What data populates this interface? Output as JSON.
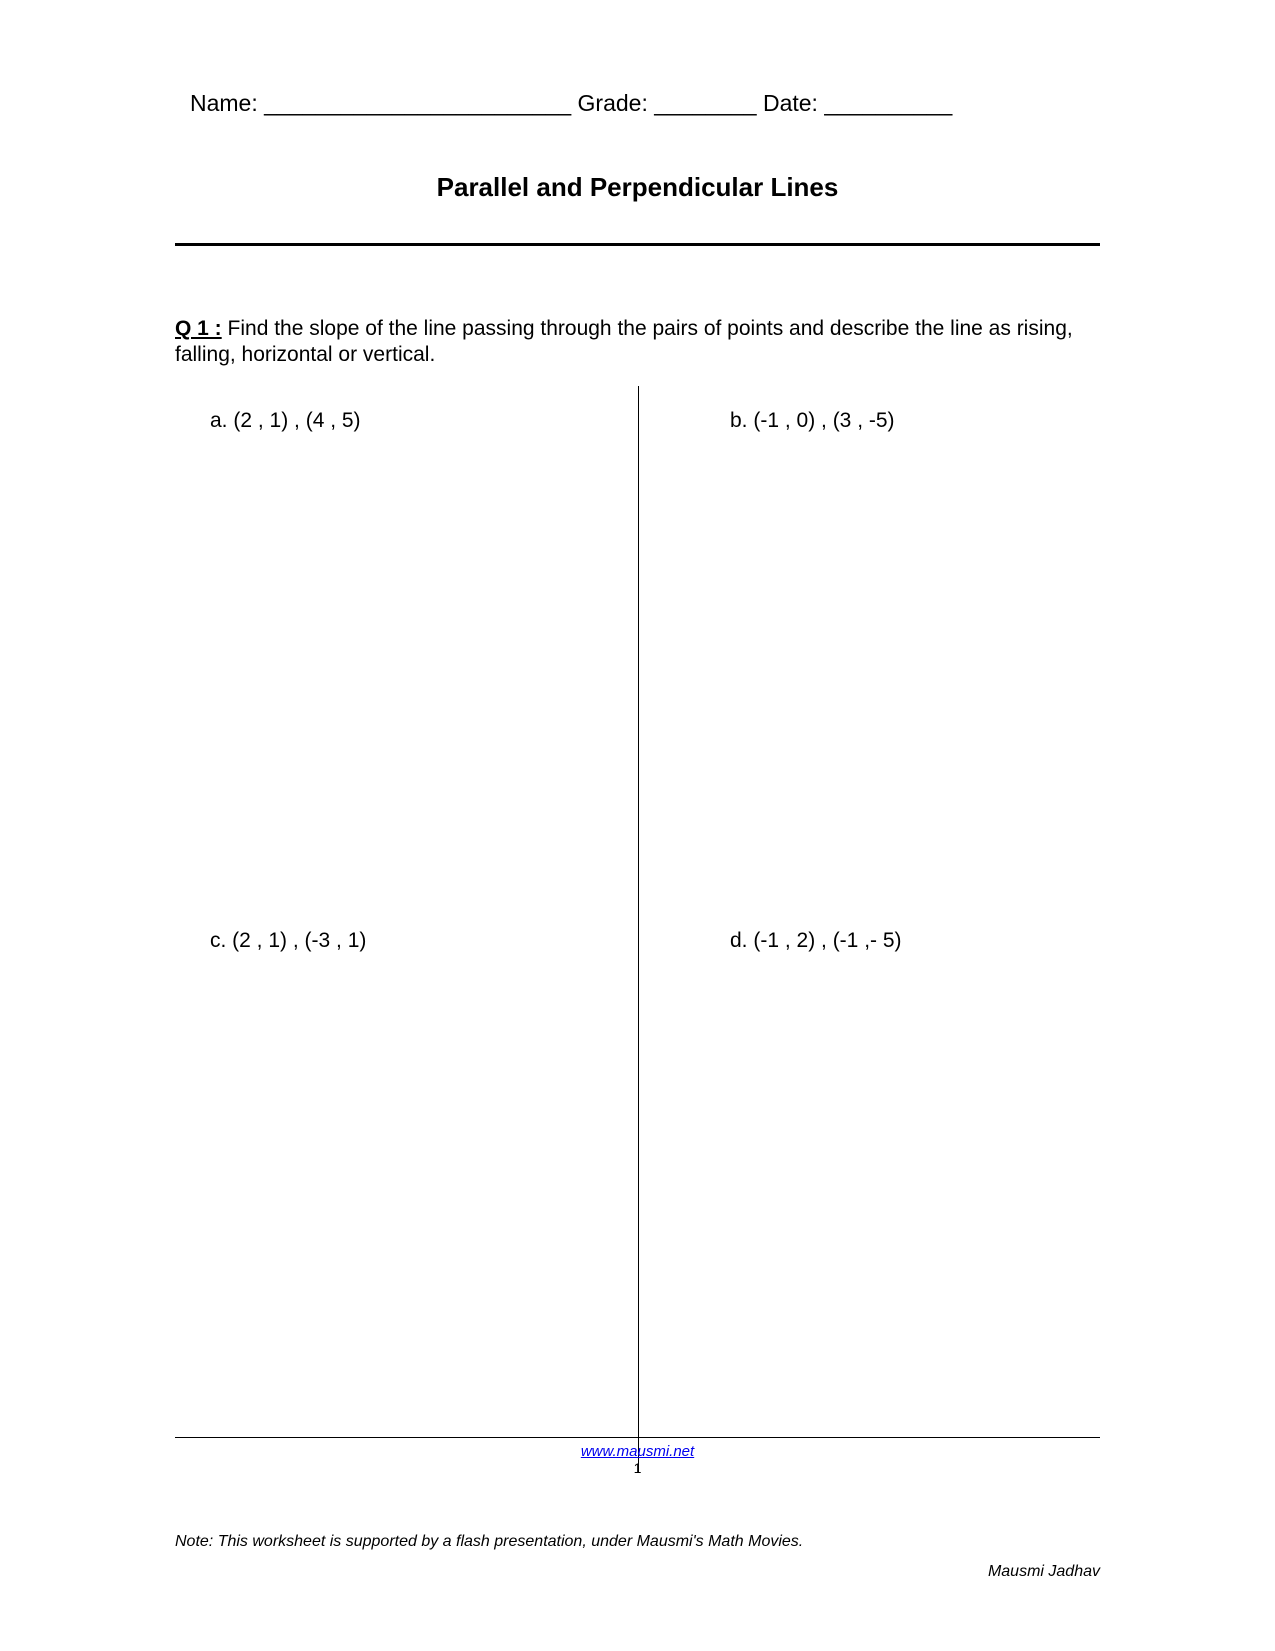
{
  "header": {
    "name_label": "Name: ________________________",
    "grade_label": "Grade: ________",
    "date_label": "Date: __________"
  },
  "title": "Parallel and Perpendicular Lines",
  "question": {
    "label": "Q 1 :",
    "text": " Find the slope of the line passing through the pairs of points and describe the line as rising, falling, horizontal or vertical."
  },
  "problems": {
    "a": "a.  (2 , 1) , (4 , 5)",
    "b": "b.  (-1 , 0) , (3 , -5)",
    "c": "c.  (2 , 1) , (-3 , 1)",
    "d": "d.  (-1 , 2) , (-1 ,- 5)"
  },
  "footer": {
    "link_text": "www.mausmi.net",
    "link_href": "http://www.mausmi.net",
    "page_number": "1"
  },
  "note": "Note: This worksheet  is supported by a flash presentation, under Mausmi's Math Movies.",
  "author": "Mausmi Jadhav"
}
